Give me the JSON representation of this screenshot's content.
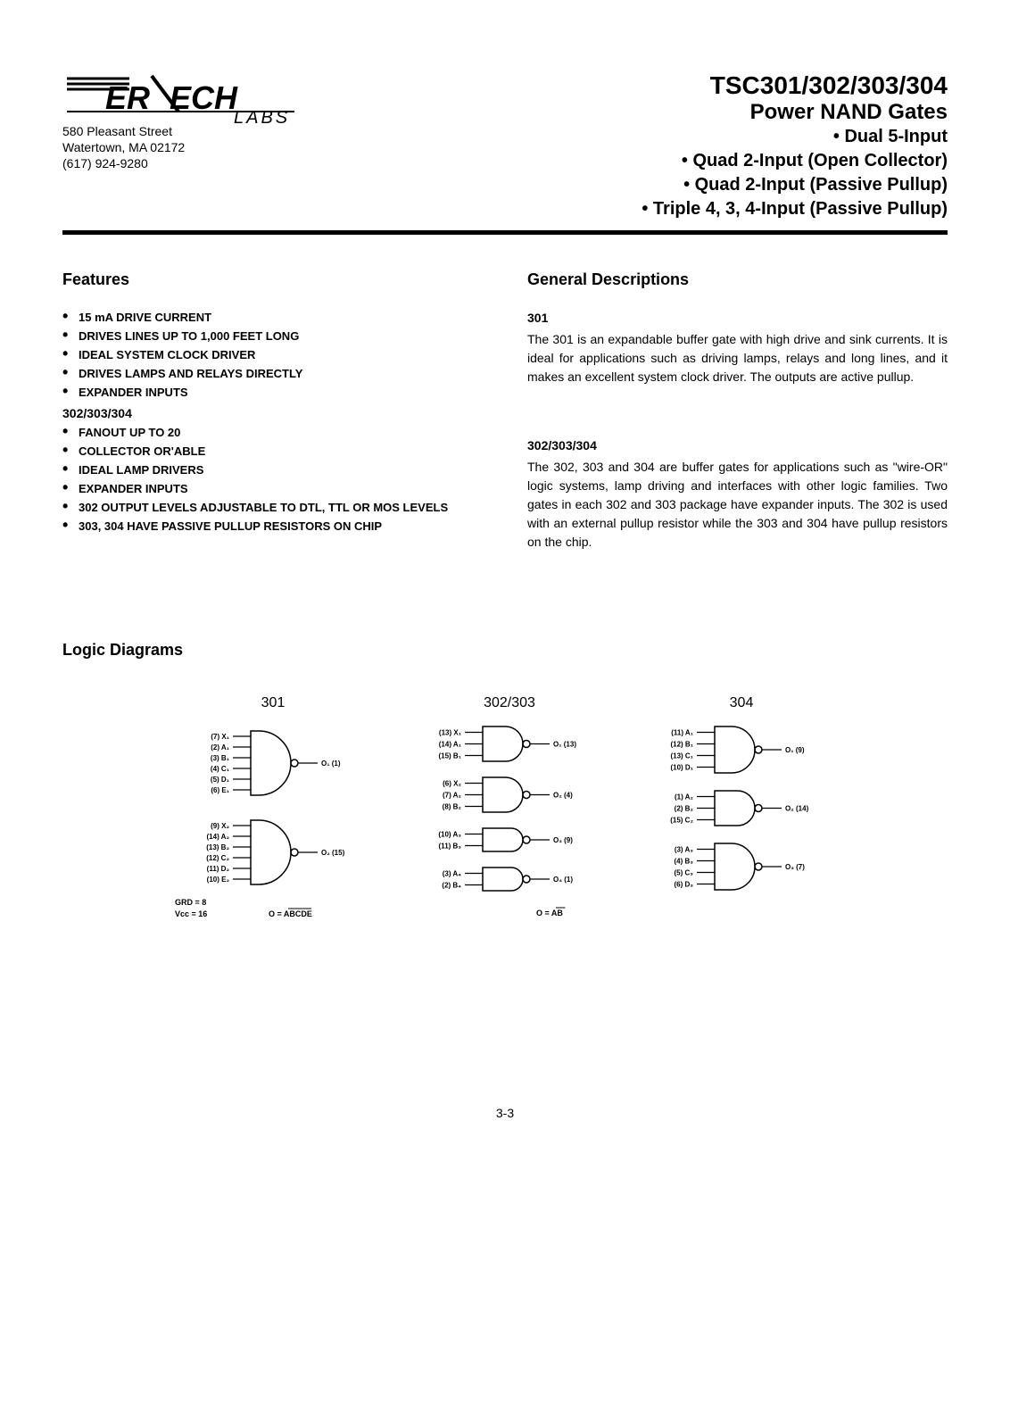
{
  "company": {
    "name_part1": "ER",
    "name_part2": "ECH",
    "name_sub": "LABS",
    "address_line1": "580 Pleasant Street",
    "address_line2": "Watertown, MA  02172",
    "phone": "(617) 924-9280"
  },
  "title": {
    "parts": "TSC301/302/303/304",
    "product": "Power NAND Gates",
    "sub1": "• Dual 5-Input",
    "sub2": "• Quad 2-Input (Open Collector)",
    "sub3": "• Quad 2-Input (Passive Pullup)",
    "sub4": "• Triple 4, 3, 4-Input (Passive Pullup)"
  },
  "features": {
    "heading": "Features",
    "group1": [
      "15 mA DRIVE CURRENT",
      "DRIVES LINES UP TO 1,000 FEET LONG",
      "IDEAL SYSTEM CLOCK DRIVER",
      "DRIVES LAMPS AND RELAYS DIRECTLY",
      "EXPANDER INPUTS"
    ],
    "group2_head": "302/303/304",
    "group2": [
      "FANOUT UP TO 20",
      "COLLECTOR OR'ABLE",
      "IDEAL LAMP DRIVERS",
      "EXPANDER INPUTS",
      "302 OUTPUT LEVELS ADJUSTABLE TO DTL, TTL OR MOS LEVELS",
      "303, 304 HAVE PASSIVE PULLUP RESISTORS ON CHIP"
    ]
  },
  "general": {
    "heading": "General Descriptions",
    "p1_head": "301",
    "p1_body": "The 301 is an expandable buffer gate with high drive and sink currents. It is ideal for applications such as driving lamps, relays and long lines, and it makes an excellent system clock driver. The outputs are active pullup.",
    "p2_head": "302/303/304",
    "p2_body": "The 302, 303 and 304 are buffer gates for applications such as \"wire-OR\" logic systems, lamp driving and interfaces with other logic families. Two gates in each 302 and 303 package have expander inputs. The 302 is used with an external pullup resistor while the 303 and 304 have pullup resistors on the chip."
  },
  "logic": {
    "heading": "Logic Diagrams",
    "d1_title": "301",
    "d2_title": "302/303",
    "d3_title": "304",
    "d1": {
      "gates": [
        {
          "inputs": [
            "(7) X₁",
            "(2) A₁",
            "(3) B₁",
            "(4) C₁",
            "(5) D₁",
            "(6) E₁"
          ],
          "output": "O₁ (1)"
        },
        {
          "inputs": [
            "(9) X₂",
            "(14) A₂",
            "(13) B₂",
            "(12) C₂",
            "(11) D₂",
            "(10) E₂"
          ],
          "output": "O₂ (15)"
        }
      ],
      "footer_left1": "GRD = 8",
      "footer_left2": "Vcc = 16",
      "footer_right": "O = ABCDE",
      "overline": true
    },
    "d2": {
      "gates": [
        {
          "inputs": [
            "(13) X₁",
            "(14) A₁",
            "(15) B₁"
          ],
          "output": "O₁ (13)"
        },
        {
          "inputs": [
            "(6) X₂",
            "(7) A₂",
            "(8) B₂"
          ],
          "output": "O₂ (4)"
        },
        {
          "inputs": [
            "(10) A₃",
            "(11) B₃"
          ],
          "output": "O₃ (9)"
        },
        {
          "inputs": [
            "(3) A₄",
            "(2) B₄"
          ],
          "output": "O₄ (1)"
        }
      ],
      "footer_right": "O = AB",
      "overline": true
    },
    "d3": {
      "gates": [
        {
          "inputs": [
            "(11) A₁",
            "(12) B₁",
            "(13) C₁",
            "(10) D₁"
          ],
          "output": "O₁ (9)"
        },
        {
          "inputs": [
            "(1) A₂",
            "(2) B₂",
            "(15) C₂"
          ],
          "output": "O₂ (14)"
        },
        {
          "inputs": [
            "(3) A₃",
            "(4) B₃",
            "(5) C₃",
            "(6) D₃"
          ],
          "output": "O₃ (7)"
        }
      ]
    }
  },
  "page_number": "3-3",
  "colors": {
    "text": "#000000",
    "background": "#ffffff"
  }
}
